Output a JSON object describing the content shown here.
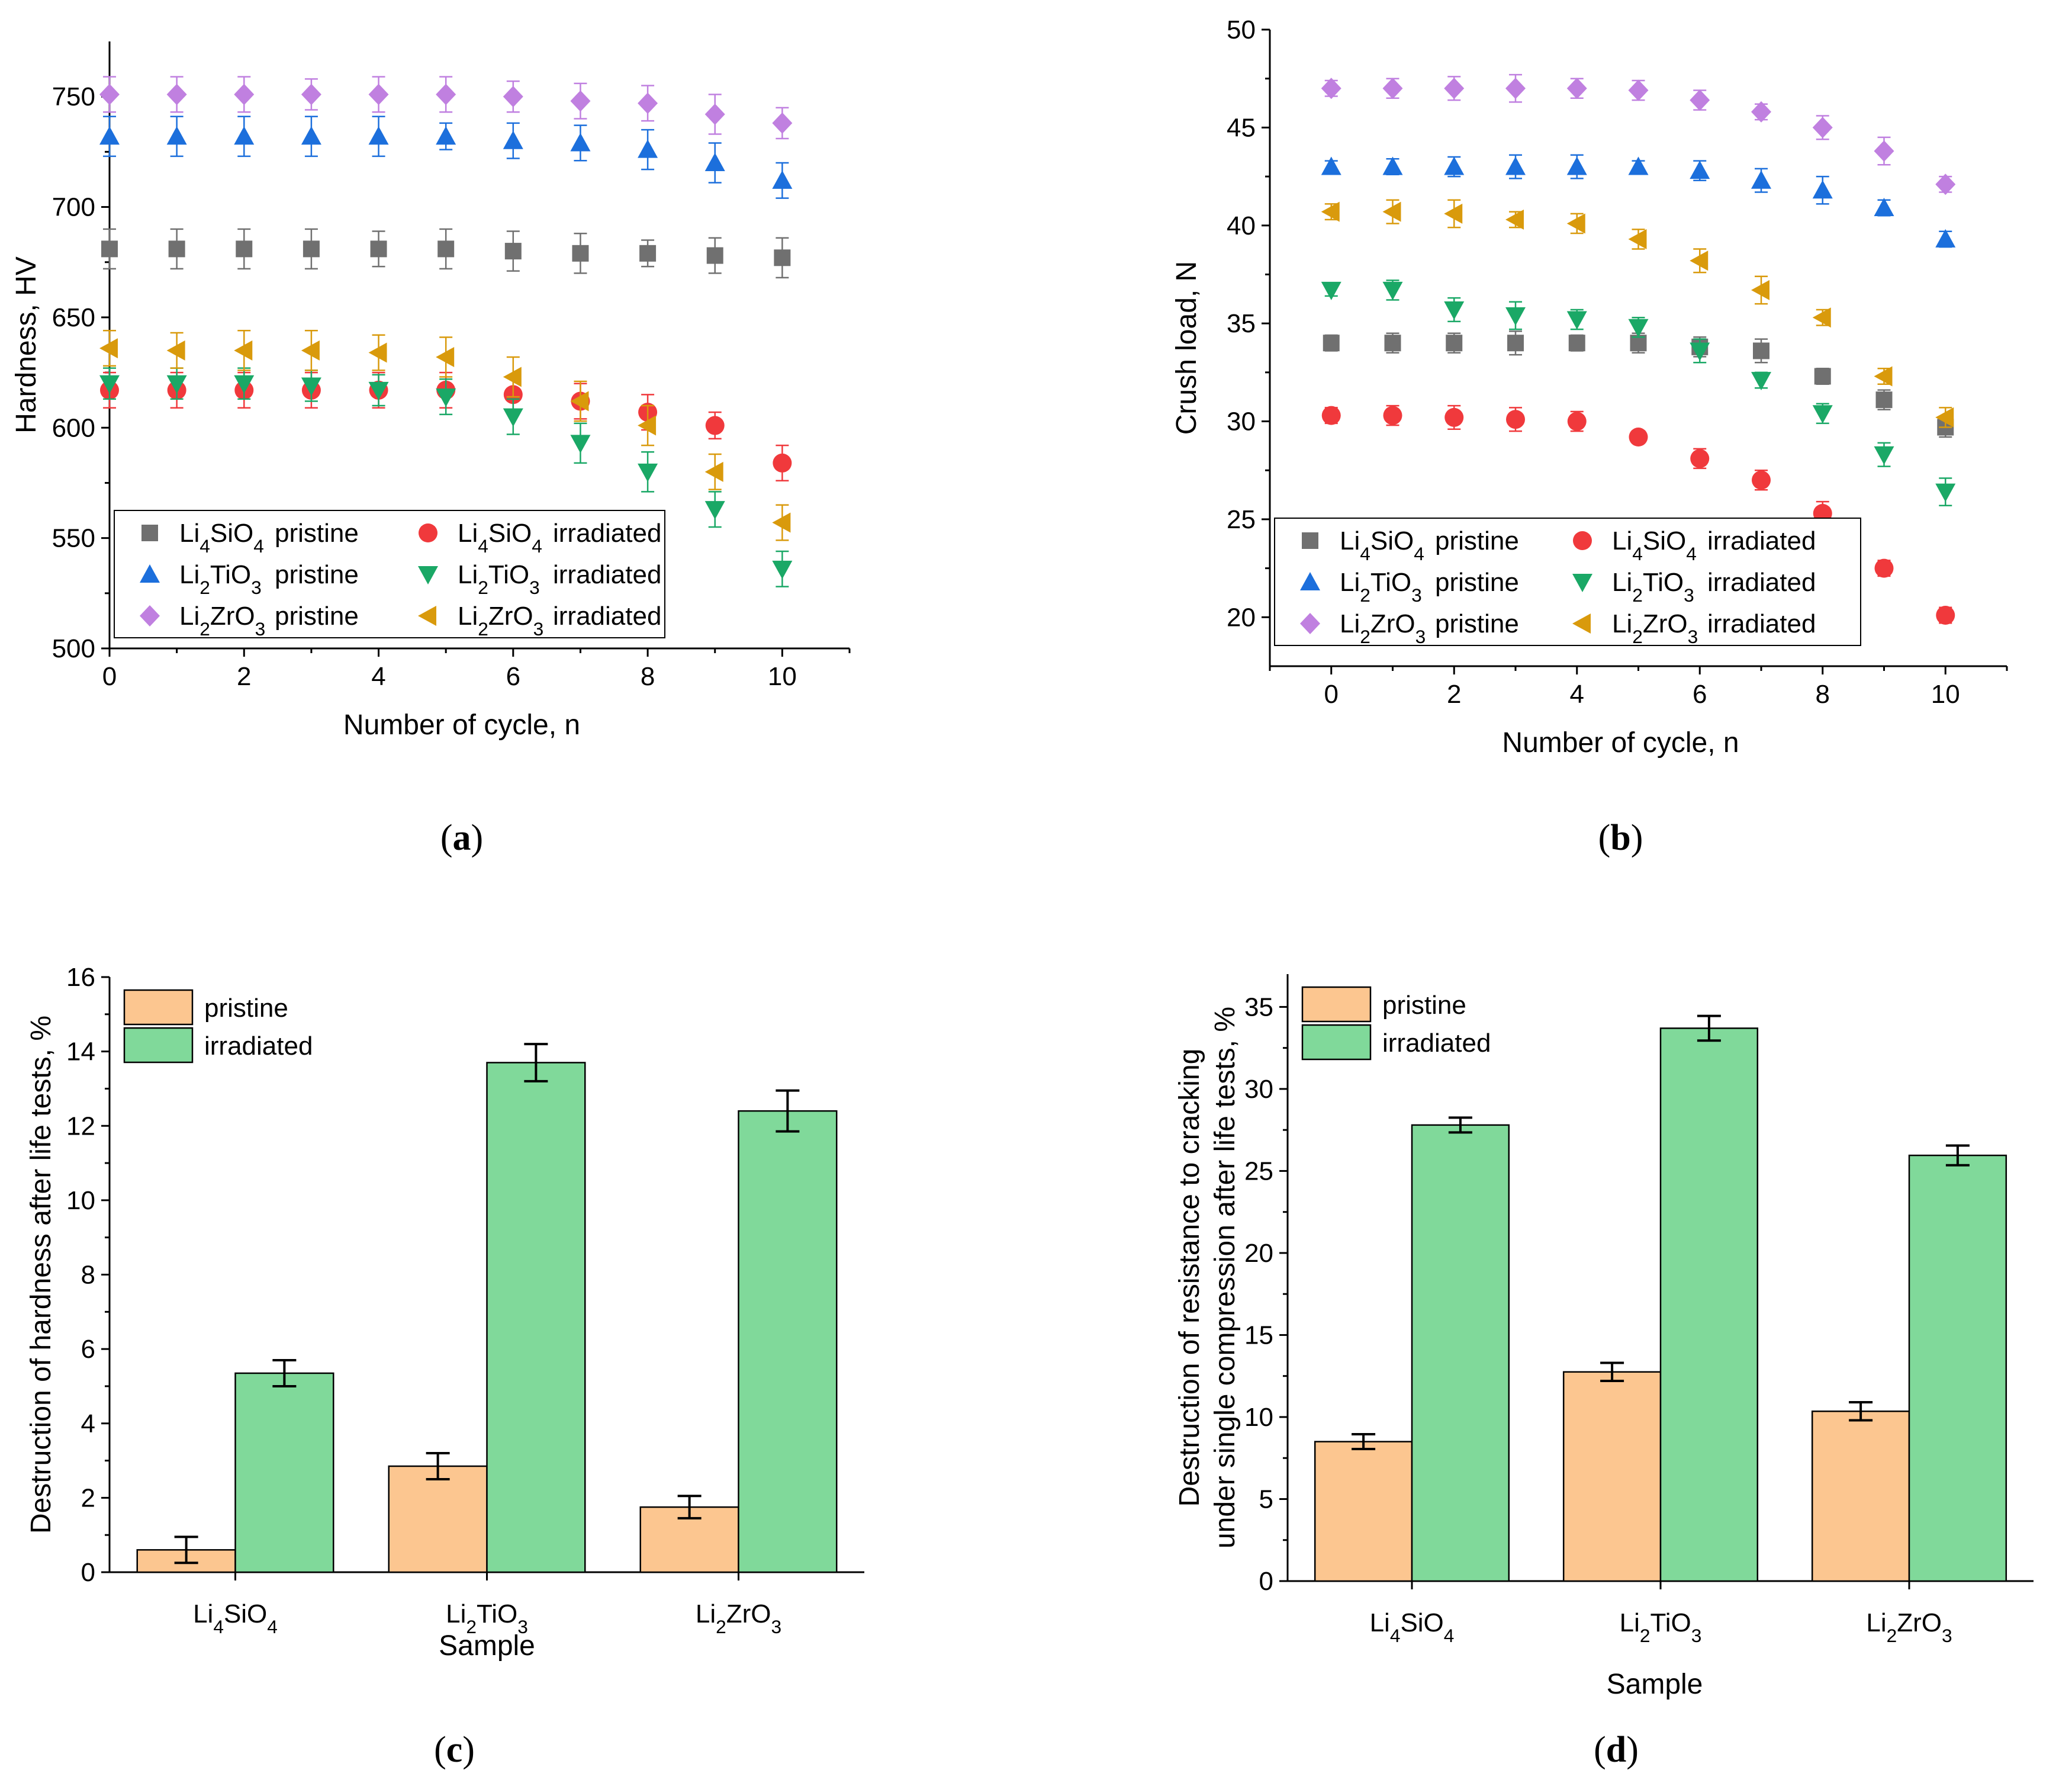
{
  "colors": {
    "Li4SiO4_pristine": "#707070",
    "Li4SiO4_irradiated": "#f0393c",
    "Li2TiO3_pristine": "#1c6fdc",
    "Li2TiO3_irradiated": "#1aa866",
    "Li2ZrO3_pristine": "#c080e0",
    "Li2ZrO3_irradiated": "#d99a0c",
    "bar_pristine": "#fcc690",
    "bar_irradiated": "#80d99a"
  },
  "chart_data": [
    {
      "id": "a",
      "type": "scatter",
      "caption": "a",
      "xlabel": "Number of cycle, n",
      "ylabel": "Hardness, HV",
      "xlim": [
        0,
        11
      ],
      "ylim": [
        500,
        775
      ],
      "xticks": [
        0,
        2,
        4,
        6,
        8,
        10
      ],
      "yticks": [
        500,
        550,
        600,
        650,
        700,
        750
      ],
      "legend_position": "bottom-left",
      "x": [
        0,
        1,
        2,
        3,
        4,
        5,
        6,
        7,
        8,
        9,
        10
      ],
      "series": [
        {
          "key": "Li4SiO4_pristine",
          "formula": "Li4SiO4",
          "state": "pristine",
          "marker": "square",
          "values": [
            681,
            681,
            681,
            681,
            681,
            681,
            680,
            679,
            679,
            678,
            677
          ],
          "errors": [
            9,
            9,
            9,
            9,
            8,
            9,
            9,
            9,
            6,
            8,
            9
          ]
        },
        {
          "key": "Li4SiO4_irradiated",
          "formula": "Li4SiO4",
          "state": "irradiated",
          "marker": "circle",
          "values": [
            617,
            617,
            617,
            617,
            617,
            617,
            615,
            612,
            607,
            601,
            584
          ],
          "errors": [
            8,
            8,
            8,
            8,
            8,
            8,
            8,
            8,
            8,
            6,
            8
          ]
        },
        {
          "key": "Li2TiO3_pristine",
          "formula": "Li2TiO3",
          "state": "pristine",
          "marker": "triangle-up",
          "values": [
            732,
            732,
            732,
            732,
            732,
            732,
            730,
            729,
            726,
            720,
            712
          ],
          "errors": [
            9,
            9,
            9,
            9,
            9,
            6,
            8,
            8,
            9,
            9,
            8
          ]
        },
        {
          "key": "Li2TiO3_irradiated",
          "formula": "Li2TiO3",
          "state": "irradiated",
          "marker": "triangle-down",
          "values": [
            620,
            620,
            620,
            619,
            617,
            614,
            605,
            593,
            580,
            563,
            536
          ],
          "errors": [
            7,
            7,
            7,
            7,
            7,
            8,
            8,
            9,
            9,
            8,
            8
          ]
        },
        {
          "key": "Li2ZrO3_pristine",
          "formula": "Li2ZrO3",
          "state": "pristine",
          "marker": "diamond",
          "values": [
            751,
            751,
            751,
            751,
            751,
            751,
            750,
            748,
            747,
            742,
            738
          ],
          "errors": [
            8,
            8,
            8,
            7,
            8,
            8,
            7,
            8,
            8,
            9,
            7
          ]
        },
        {
          "key": "Li2ZrO3_irradiated",
          "formula": "Li2ZrO3",
          "state": "irradiated",
          "marker": "triangle-left",
          "values": [
            636,
            635,
            635,
            635,
            634,
            632,
            623,
            612,
            601,
            580,
            557
          ],
          "errors": [
            8,
            8,
            9,
            9,
            8,
            9,
            9,
            9,
            9,
            8,
            8
          ]
        }
      ]
    },
    {
      "id": "b",
      "type": "scatter",
      "caption": "b",
      "xlabel": "Number of cycle, n",
      "ylabel": "Crush load, N",
      "xlim": [
        -1,
        11
      ],
      "ylim": [
        17.5,
        50
      ],
      "xticks": [
        0,
        2,
        4,
        6,
        8,
        10
      ],
      "yticks": [
        20,
        25,
        30,
        35,
        40,
        45,
        50
      ],
      "legend_position": "bottom-left",
      "x": [
        0,
        1,
        2,
        3,
        4,
        5,
        6,
        7,
        8,
        9,
        10
      ],
      "series": [
        {
          "key": "Li4SiO4_pristine",
          "formula": "Li4SiO4",
          "state": "pristine",
          "marker": "square",
          "values": [
            34.0,
            34.0,
            34.0,
            34.0,
            34.0,
            34.0,
            33.8,
            33.6,
            32.3,
            31.1,
            29.7
          ],
          "errors": [
            0.4,
            0.5,
            0.5,
            0.6,
            0.4,
            0.5,
            0.5,
            0.6,
            0.4,
            0.5,
            0.5
          ]
        },
        {
          "key": "Li4SiO4_irradiated",
          "formula": "Li4SiO4",
          "state": "irradiated",
          "marker": "circle",
          "values": [
            30.3,
            30.3,
            30.2,
            30.1,
            30.0,
            29.2,
            28.1,
            27.0,
            25.3,
            22.5,
            20.1
          ],
          "errors": [
            0.4,
            0.5,
            0.6,
            0.6,
            0.5,
            0.3,
            0.5,
            0.5,
            0.6,
            0.4,
            0.4
          ]
        },
        {
          "key": "Li2TiO3_pristine",
          "formula": "Li2TiO3",
          "state": "pristine",
          "marker": "triangle-up",
          "values": [
            43.0,
            43.0,
            43.0,
            43.0,
            43.0,
            43.0,
            42.8,
            42.3,
            41.8,
            40.9,
            39.3
          ],
          "errors": [
            0.3,
            0.4,
            0.5,
            0.6,
            0.6,
            0.3,
            0.5,
            0.6,
            0.7,
            0.4,
            0.4
          ]
        },
        {
          "key": "Li2TiO3_irradiated",
          "formula": "Li2TiO3",
          "state": "irradiated",
          "marker": "triangle-down",
          "values": [
            36.7,
            36.7,
            35.7,
            35.4,
            35.2,
            34.8,
            33.6,
            32.1,
            30.4,
            28.3,
            26.4
          ],
          "errors": [
            0.3,
            0.5,
            0.6,
            0.7,
            0.5,
            0.5,
            0.6,
            0.4,
            0.5,
            0.6,
            0.7
          ]
        },
        {
          "key": "Li2ZrO3_pristine",
          "formula": "Li2ZrO3",
          "state": "pristine",
          "marker": "diamond",
          "values": [
            47.0,
            47.0,
            47.0,
            47.0,
            47.0,
            46.9,
            46.4,
            45.8,
            45.0,
            43.8,
            42.1
          ],
          "errors": [
            0.4,
            0.5,
            0.6,
            0.7,
            0.5,
            0.5,
            0.5,
            0.4,
            0.6,
            0.7,
            0.4
          ]
        },
        {
          "key": "Li2ZrO3_irradiated",
          "formula": "Li2ZrO3",
          "state": "irradiated",
          "marker": "triangle-left",
          "values": [
            40.7,
            40.7,
            40.6,
            40.3,
            40.1,
            39.3,
            38.2,
            36.7,
            35.3,
            32.3,
            30.2
          ],
          "errors": [
            0.4,
            0.6,
            0.7,
            0.4,
            0.5,
            0.5,
            0.6,
            0.7,
            0.4,
            0.4,
            0.5
          ]
        }
      ]
    },
    {
      "id": "c",
      "type": "bar",
      "caption": "c",
      "xlabel": "Sample",
      "ylabel": "Destruction of hardness after life tests, %",
      "ylim": [
        0,
        16
      ],
      "yticks": [
        0,
        2,
        4,
        6,
        8,
        10,
        12,
        14,
        16
      ],
      "legend_position": "top-left",
      "categories": [
        {
          "base": "Li",
          "sub1": "4",
          "mid": "SiO",
          "sub2": "4"
        },
        {
          "base": "Li",
          "sub1": "2",
          "mid": "TiO",
          "sub2": "3"
        },
        {
          "base": "Li",
          "sub1": "2",
          "mid": "ZrO",
          "sub2": "3"
        }
      ],
      "series": [
        {
          "key": "pristine",
          "name": "pristine",
          "values": [
            0.6,
            2.85,
            1.75
          ],
          "errors": [
            0.35,
            0.35,
            0.3
          ]
        },
        {
          "key": "irradiated",
          "name": "irradiated",
          "values": [
            5.35,
            13.7,
            12.4
          ],
          "errors": [
            0.35,
            0.5,
            0.55
          ]
        }
      ]
    },
    {
      "id": "d",
      "type": "bar",
      "caption": "d",
      "xlabel": "Sample",
      "ylabel_line1": "Destruction of resistance to cracking",
      "ylabel_line2": "under single compression after life tests, %",
      "ylim": [
        0,
        37
      ],
      "yticks": [
        0,
        5,
        10,
        15,
        20,
        25,
        30,
        35
      ],
      "legend_position": "top-left",
      "categories": [
        {
          "base": "Li",
          "sub1": "4",
          "mid": "SiO",
          "sub2": "4"
        },
        {
          "base": "Li",
          "sub1": "2",
          "mid": "TiO",
          "sub2": "3"
        },
        {
          "base": "Li",
          "sub1": "2",
          "mid": "ZrO",
          "sub2": "3"
        }
      ],
      "series": [
        {
          "key": "pristine",
          "name": "pristine",
          "values": [
            8.5,
            12.75,
            10.35
          ],
          "errors": [
            0.45,
            0.55,
            0.55
          ]
        },
        {
          "key": "irradiated",
          "name": "irradiated",
          "values": [
            27.8,
            33.7,
            25.95
          ],
          "errors": [
            0.45,
            0.75,
            0.6
          ]
        }
      ]
    }
  ]
}
